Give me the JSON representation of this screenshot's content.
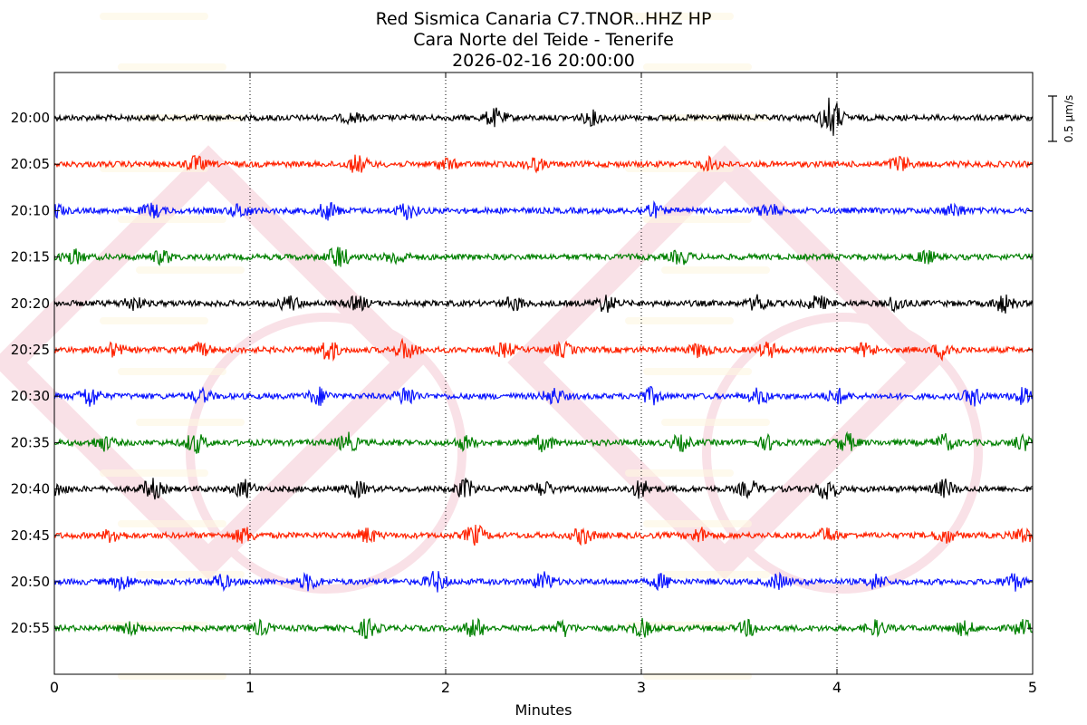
{
  "header": {
    "title_line1": "Red Sismica Canaria C7.TNOR..HHZ HP",
    "title_line2": "Cara Norte del Teide - Tenerife",
    "title_line3": "2026-02-16 20:00:00"
  },
  "chart_data": {
    "type": "line",
    "title": "Red Sismica Canaria C7.TNOR..HHZ HP",
    "subtitle": [
      "Cara Norte del Teide - Tenerife",
      "2026-02-16 20:00:00"
    ],
    "xlabel": "Minutes",
    "ylabel": "",
    "xlim": [
      0,
      5
    ],
    "x_ticks": [
      0,
      1,
      2,
      3,
      4,
      5
    ],
    "x_gridlines": [
      1,
      2,
      3,
      4
    ],
    "grid": "vertical dotted",
    "scale_bar": {
      "label": "0.5 µm/s",
      "value": 0.5,
      "unit": "µm/s"
    },
    "trace_colors": [
      "#000000",
      "#ff2200",
      "#0a14ff",
      "#008000"
    ],
    "traces": [
      {
        "label": "20:00",
        "color": "#000000",
        "bursts": [
          [
            1.52,
            0.6
          ],
          [
            2.25,
            1.2
          ],
          [
            2.75,
            0.9
          ],
          [
            3.97,
            3.0
          ]
        ]
      },
      {
        "label": "20:05",
        "color": "#ff2200",
        "bursts": [
          [
            0.72,
            1.0
          ],
          [
            1.55,
            1.2
          ],
          [
            2.0,
            0.8
          ],
          [
            2.45,
            0.9
          ],
          [
            3.35,
            0.8
          ],
          [
            4.32,
            1.1
          ]
        ]
      },
      {
        "label": "20:10",
        "color": "#0a14ff",
        "bursts": [
          [
            0.0,
            1.0
          ],
          [
            0.5,
            0.9
          ],
          [
            0.95,
            0.9
          ],
          [
            1.4,
            1.2
          ],
          [
            1.8,
            1.1
          ],
          [
            3.05,
            1.0
          ],
          [
            3.65,
            0.9
          ],
          [
            4.6,
            0.9
          ]
        ]
      },
      {
        "label": "20:15",
        "color": "#008000",
        "bursts": [
          [
            0.1,
            1.0
          ],
          [
            0.55,
            0.9
          ],
          [
            1.45,
            1.6
          ],
          [
            1.75,
            0.9
          ],
          [
            3.2,
            0.9
          ],
          [
            4.45,
            0.9
          ]
        ]
      },
      {
        "label": "20:20",
        "color": "#000000",
        "bursts": [
          [
            0.4,
            0.9
          ],
          [
            1.2,
            1.0
          ],
          [
            1.55,
            0.9
          ],
          [
            2.35,
            0.9
          ],
          [
            2.82,
            1.2
          ],
          [
            3.6,
            1.1
          ],
          [
            3.9,
            1.0
          ],
          [
            4.3,
            1.0
          ],
          [
            4.85,
            1.2
          ]
        ]
      },
      {
        "label": "20:25",
        "color": "#ff2200",
        "bursts": [
          [
            0.3,
            0.9
          ],
          [
            0.75,
            0.8
          ],
          [
            1.4,
            1.5
          ],
          [
            1.8,
            1.4
          ],
          [
            2.3,
            0.9
          ],
          [
            2.6,
            0.9
          ],
          [
            3.3,
            1.0
          ],
          [
            3.65,
            1.0
          ],
          [
            4.15,
            0.9
          ],
          [
            4.55,
            1.3
          ]
        ]
      },
      {
        "label": "20:30",
        "color": "#0a14ff",
        "bursts": [
          [
            0.18,
            1.5
          ],
          [
            0.75,
            0.9
          ],
          [
            1.35,
            1.2
          ],
          [
            1.8,
            1.4
          ],
          [
            2.55,
            1.1
          ],
          [
            3.05,
            1.1
          ],
          [
            3.6,
            1.0
          ],
          [
            4.0,
            1.0
          ],
          [
            4.7,
            1.2
          ],
          [
            4.95,
            1.0
          ]
        ]
      },
      {
        "label": "20:35",
        "color": "#008000",
        "bursts": [
          [
            0.25,
            1.0
          ],
          [
            0.72,
            1.4
          ],
          [
            1.5,
            1.3
          ],
          [
            2.1,
            0.9
          ],
          [
            2.5,
            1.1
          ],
          [
            3.2,
            1.0
          ],
          [
            3.65,
            0.9
          ],
          [
            4.05,
            1.2
          ],
          [
            4.55,
            1.1
          ],
          [
            4.95,
            1.0
          ]
        ]
      },
      {
        "label": "20:40",
        "color": "#000000",
        "bursts": [
          [
            0.0,
            1.0
          ],
          [
            0.5,
            1.4
          ],
          [
            0.97,
            1.2
          ],
          [
            1.55,
            1.0
          ],
          [
            2.1,
            1.3
          ],
          [
            2.5,
            1.0
          ],
          [
            3.0,
            1.2
          ],
          [
            3.55,
            1.1
          ],
          [
            3.95,
            1.6
          ],
          [
            4.55,
            1.2
          ]
        ]
      },
      {
        "label": "20:45",
        "color": "#ff2200",
        "bursts": [
          [
            0.3,
            0.9
          ],
          [
            0.97,
            1.1
          ],
          [
            1.6,
            1.0
          ],
          [
            2.15,
            1.4
          ],
          [
            2.7,
            1.1
          ],
          [
            3.3,
            1.0
          ],
          [
            3.95,
            1.0
          ],
          [
            4.55,
            1.0
          ],
          [
            4.95,
            1.1
          ]
        ]
      },
      {
        "label": "20:50",
        "color": "#0a14ff",
        "bursts": [
          [
            0.35,
            1.0
          ],
          [
            0.85,
            1.0
          ],
          [
            1.3,
            1.1
          ],
          [
            1.95,
            1.4
          ],
          [
            2.5,
            1.3
          ],
          [
            3.1,
            1.0
          ],
          [
            3.7,
            1.0
          ],
          [
            4.2,
            1.0
          ],
          [
            4.9,
            1.2
          ]
        ]
      },
      {
        "label": "20:55",
        "color": "#008000",
        "bursts": [
          [
            0.4,
            0.9
          ],
          [
            1.05,
            0.9
          ],
          [
            1.6,
            1.3
          ],
          [
            2.15,
            1.3
          ],
          [
            2.6,
            1.0
          ],
          [
            3.0,
            1.2
          ],
          [
            3.55,
            1.0
          ],
          [
            4.2,
            1.0
          ],
          [
            4.65,
            0.9
          ],
          [
            4.95,
            1.0
          ]
        ]
      }
    ]
  }
}
